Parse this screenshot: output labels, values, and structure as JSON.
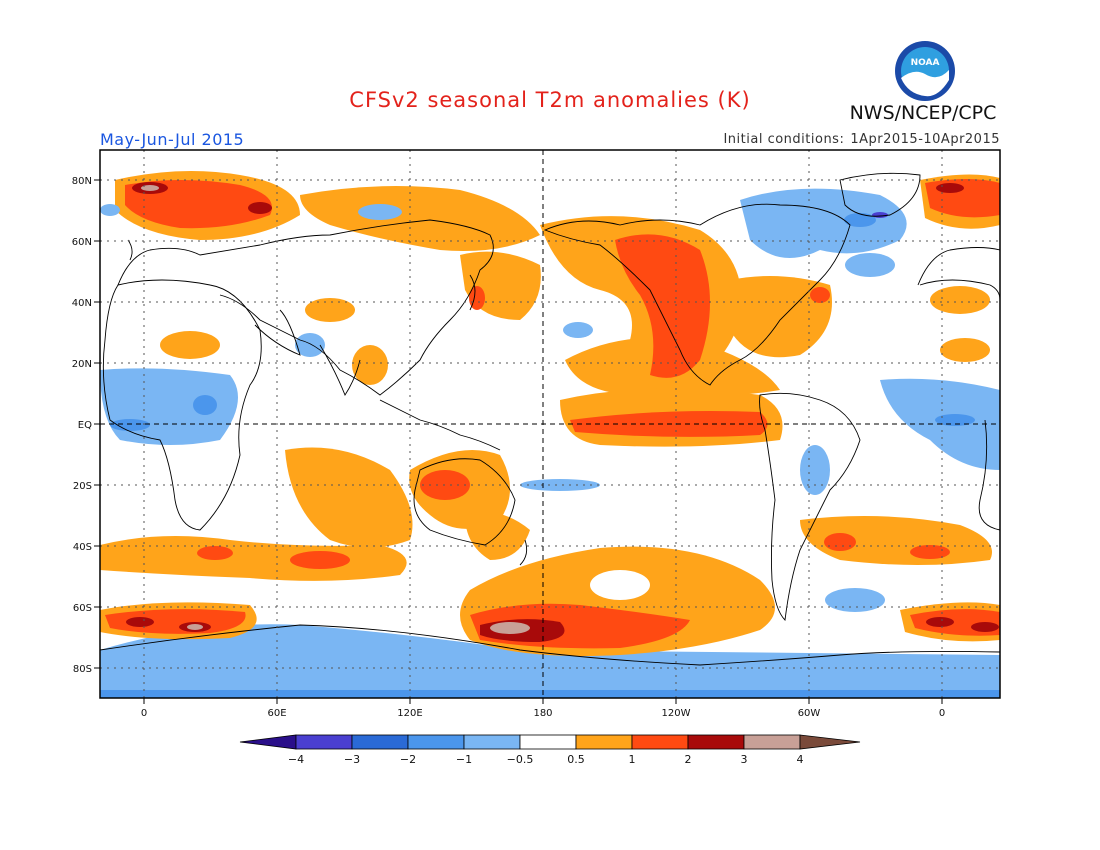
{
  "title": "CFSv2 seasonal T2m anomalies (K)",
  "agency": "NWS/NCEP/CPC",
  "logo_text": "NOAA",
  "period": "May-Jun-Jul 2015",
  "initial_conditions": {
    "label": "Initial conditions:",
    "value": "1Apr2015-10Apr2015"
  },
  "map": {
    "lat_labels": [
      "80N",
      "60N",
      "40N",
      "20N",
      "EQ",
      "20S",
      "40S",
      "60S",
      "80S"
    ],
    "lon_labels": [
      "0",
      "60E",
      "120E",
      "180",
      "120W",
      "60W",
      "0"
    ]
  },
  "colorbar": {
    "labels": [
      "−4",
      "−3",
      "−2",
      "−1",
      "−0.5",
      "0.5",
      "1",
      "2",
      "3",
      "4"
    ],
    "colors": {
      "lt_neg4": "#2a0f8a",
      "neg4_neg3": "#4a3fd0",
      "neg3_neg2": "#2a6ad6",
      "neg2_neg1": "#4b96ec",
      "neg1_neg05": "#7ab6f3",
      "neg05_05": "#ffffff",
      "p05_1": "#ffa41a",
      "p1_2": "#ff4a12",
      "p2_3": "#a80a0a",
      "p3_4": "#c8a097",
      "gt4": "#7a4a3a"
    }
  }
}
